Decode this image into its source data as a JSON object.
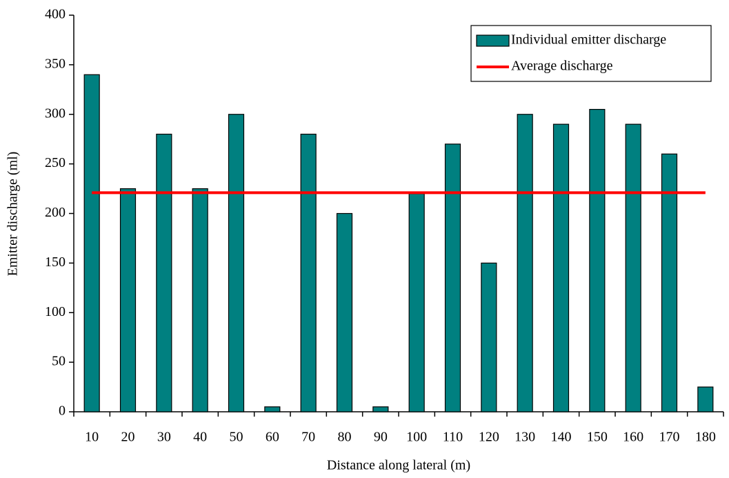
{
  "chart_data": {
    "type": "bar",
    "x_label": "Distance along lateral (m)",
    "y_label": "Emitter discharge (ml)",
    "categories": [
      "10",
      "20",
      "30",
      "40",
      "50",
      "60",
      "70",
      "80",
      "90",
      "100",
      "110",
      "120",
      "130",
      "140",
      "150",
      "160",
      "170",
      "180"
    ],
    "series": [
      {
        "name": "Individual emitter discharge",
        "type": "bar",
        "color": "#008080",
        "values": [
          340,
          225,
          280,
          225,
          300,
          5,
          280,
          200,
          5,
          220,
          270,
          150,
          300,
          290,
          305,
          290,
          260,
          25
        ]
      },
      {
        "name": "Average discharge",
        "type": "line",
        "color": "#ff0000",
        "values": [
          221,
          221,
          221,
          221,
          221,
          221,
          221,
          221,
          221,
          221,
          221,
          221,
          221,
          221,
          221,
          221,
          221,
          221
        ]
      }
    ],
    "ylim": [
      0,
      400
    ],
    "yticks": [
      0,
      50,
      100,
      150,
      200,
      250,
      300,
      350,
      400
    ],
    "grid": false,
    "legend": "upper right"
  }
}
